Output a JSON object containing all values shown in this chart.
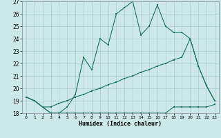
{
  "xlabel": "Humidex (Indice chaleur)",
  "bg_color": "#cce8e8",
  "grid_color": "#aacccc",
  "line_color": "#1a7060",
  "xlim": [
    0,
    23
  ],
  "ylim": [
    18,
    27
  ],
  "xticks": [
    0,
    1,
    2,
    3,
    4,
    5,
    6,
    7,
    8,
    9,
    10,
    11,
    12,
    13,
    14,
    15,
    16,
    17,
    18,
    19,
    20,
    21,
    22,
    23
  ],
  "yticks": [
    18,
    19,
    20,
    21,
    22,
    23,
    24,
    25,
    26,
    27
  ],
  "s1_x": [
    0,
    1,
    2,
    3,
    4,
    5,
    6,
    7,
    8,
    9,
    10,
    11,
    12,
    13,
    14,
    15,
    16,
    17,
    18,
    19,
    20,
    21,
    22,
    23
  ],
  "s1_y": [
    19.3,
    19.0,
    18.5,
    18.0,
    18.0,
    18.0,
    18.0,
    18.0,
    18.0,
    18.0,
    18.0,
    18.0,
    18.0,
    18.0,
    18.0,
    18.0,
    18.0,
    18.0,
    18.5,
    18.5,
    18.5,
    18.5,
    18.5,
    18.7
  ],
  "s2_x": [
    0,
    1,
    2,
    3,
    4,
    5,
    6,
    7,
    8,
    9,
    10,
    11,
    12,
    13,
    14,
    15,
    16,
    17,
    18,
    19,
    20,
    21,
    22,
    23
  ],
  "s2_y": [
    19.3,
    19.0,
    18.5,
    18.5,
    18.8,
    19.0,
    19.3,
    19.5,
    19.8,
    20.0,
    20.3,
    20.5,
    20.8,
    21.0,
    21.3,
    21.5,
    21.8,
    22.0,
    22.3,
    22.5,
    24.0,
    21.8,
    20.2,
    19.0
  ],
  "s3_x": [
    0,
    1,
    2,
    3,
    4,
    5,
    6,
    7,
    8,
    9,
    10,
    11,
    12,
    13,
    14,
    15,
    16,
    17,
    18,
    19,
    20,
    21,
    22,
    23
  ],
  "s3_y": [
    19.3,
    19.0,
    18.5,
    18.0,
    18.0,
    18.5,
    19.5,
    22.5,
    21.5,
    24.0,
    23.5,
    26.0,
    26.5,
    27.0,
    24.3,
    25.0,
    26.7,
    25.0,
    24.5,
    24.5,
    24.0,
    21.8,
    20.2,
    19.0
  ]
}
